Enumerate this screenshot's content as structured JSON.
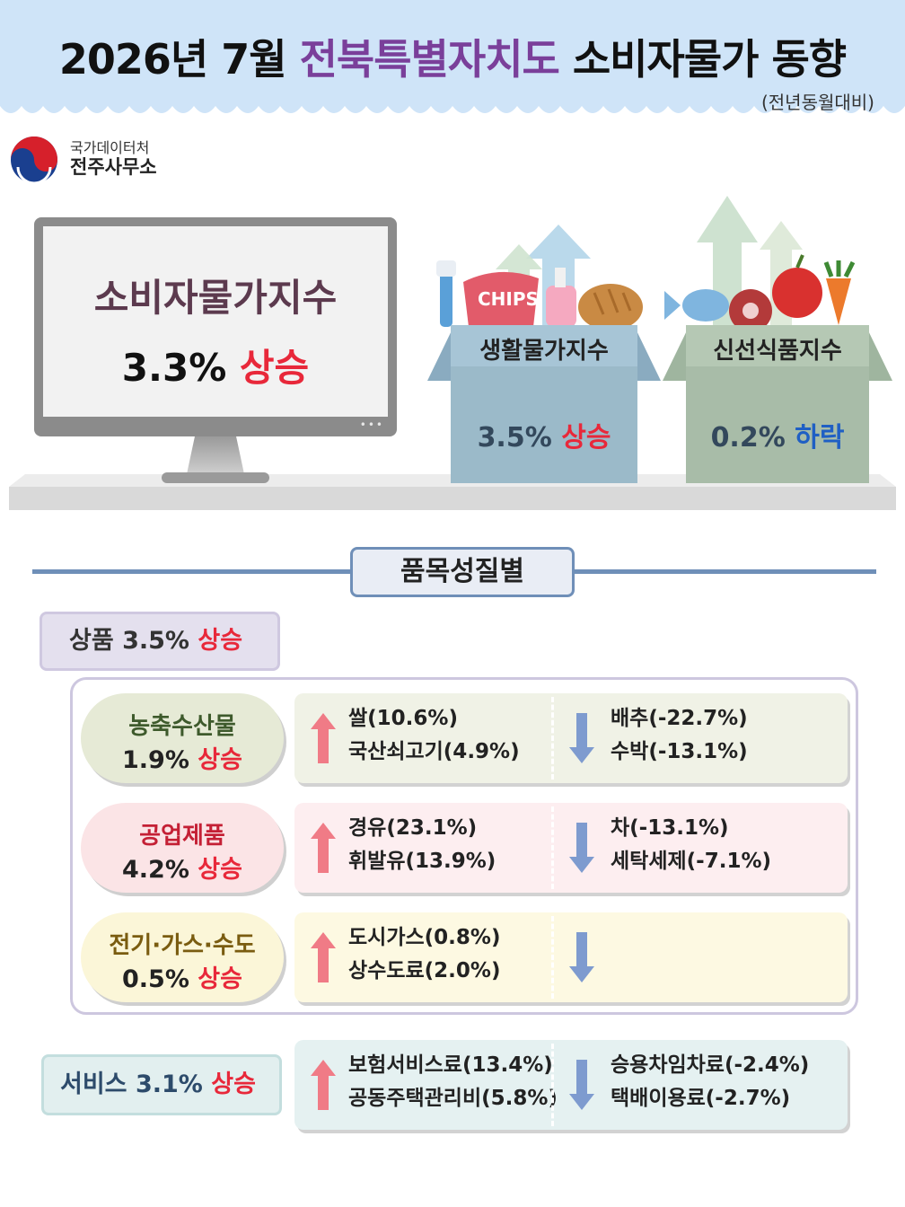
{
  "header": {
    "title_pre": "2026년 7월",
    "title_region": "전북특별자치도",
    "title_post": "소비자물가 동향",
    "subtitle": "(전년동월대비)",
    "colors": {
      "banner": "#cfe4f8",
      "region": "#7a3f9a"
    }
  },
  "org": {
    "line1": "국가데이터처",
    "line2": "전주사무소"
  },
  "cpi": {
    "label": "소비자물가지수",
    "value": "3.3%",
    "direction": "상승"
  },
  "living": {
    "label": "생활물가지수",
    "value": "3.5%",
    "direction": "상승"
  },
  "fresh": {
    "label": "신선식품지수",
    "value": "0.2%",
    "direction": "하락"
  },
  "box_art": {
    "chips_text": "CHIPS"
  },
  "section_title": "품목성질별",
  "goods": {
    "label": "상품",
    "value": "3.5%",
    "direction": "상승"
  },
  "categories": [
    {
      "name": "농축수산물",
      "value": "1.9%",
      "direction": "상승",
      "up_items": [
        "쌀(10.6%)",
        "국산쇠고기(4.9%)"
      ],
      "down_items": [
        "배추(-22.7%)",
        "수박(-13.1%)"
      ]
    },
    {
      "name": "공업제품",
      "value": "4.2%",
      "direction": "상승",
      "up_items": [
        "경유(23.1%)",
        "휘발유(13.9%)"
      ],
      "down_items": [
        "차(-13.1%)",
        "세탁세제(-7.1%)"
      ]
    },
    {
      "name": "전기·가스·수도",
      "value": "0.5%",
      "direction": "상승",
      "up_items": [
        "도시가스(0.8%)",
        "상수도료(2.0%)"
      ],
      "down_items": []
    }
  ],
  "services": {
    "label": "서비스",
    "value": "3.1%",
    "direction": "상승",
    "up_items": [
      "보험서비스료(13.4%)",
      "공동주택관리비(5.8%)"
    ],
    "down_items": [
      "승용차임차료(-2.4%)",
      "택배이용료(-2.7%)"
    ]
  },
  "colors": {
    "up": "#e8283a",
    "down": "#1f5fc4"
  },
  "icons": {
    "up": "up-arrow-icon",
    "down": "down-arrow-icon"
  }
}
